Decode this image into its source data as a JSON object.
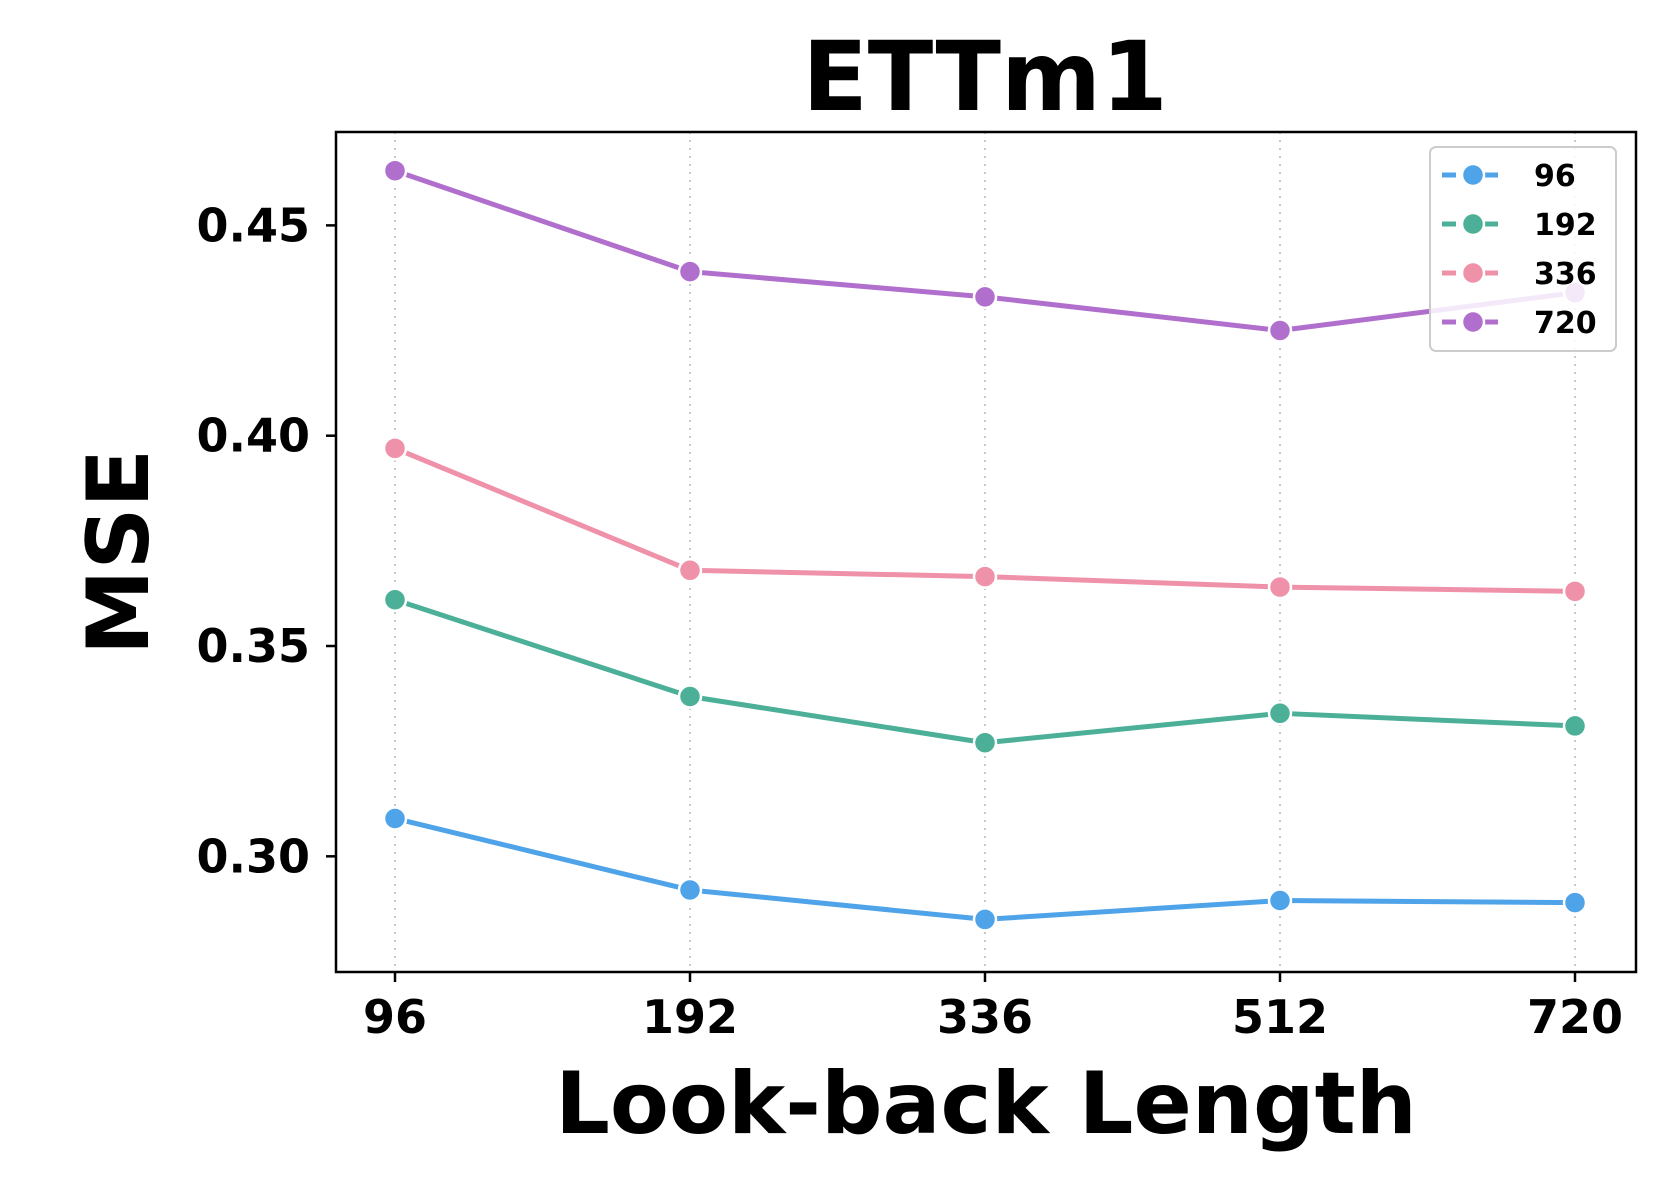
{
  "chart_data": {
    "type": "line",
    "title": "ETTm1",
    "xlabel": "Look-back Length",
    "ylabel": "MSE",
    "categories": [
      "96",
      "192",
      "336",
      "512",
      "720"
    ],
    "y_ticks": [
      "0.30",
      "0.35",
      "0.40",
      "0.45"
    ],
    "ylim": [
      0.2725,
      0.4722
    ],
    "grid": "vertical dotted",
    "legend_position": "top-right",
    "series": [
      {
        "name": "96",
        "color": "#4fa3e8",
        "values": [
          0.309,
          0.292,
          0.285,
          0.2895,
          0.289
        ]
      },
      {
        "name": "192",
        "color": "#4caf97",
        "values": [
          0.361,
          0.338,
          0.327,
          0.334,
          0.331
        ]
      },
      {
        "name": "336",
        "color": "#ef91a9",
        "values": [
          0.397,
          0.368,
          0.3665,
          0.364,
          0.363
        ]
      },
      {
        "name": "720",
        "color": "#b06fcd",
        "values": [
          0.463,
          0.439,
          0.433,
          0.425,
          0.434
        ]
      }
    ]
  }
}
